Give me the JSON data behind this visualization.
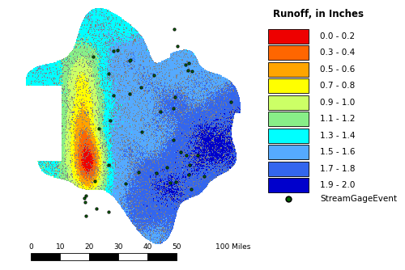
{
  "legend_title": "Runoff, in Inches",
  "legend_title_fontsize": 8.5,
  "legend_fontsize": 7.5,
  "legend_entries": [
    {
      "label": "0.0 - 0.2",
      "color": "#EE0000"
    },
    {
      "label": "0.3 - 0.4",
      "color": "#FF6600"
    },
    {
      "label": "0.5 - 0.6",
      "color": "#FFA500"
    },
    {
      "label": "0.7 - 0.8",
      "color": "#FFFF00"
    },
    {
      "label": "0.9 - 1.0",
      "color": "#CCFF66"
    },
    {
      "label": "1.1 - 1.2",
      "color": "#88EE88"
    },
    {
      "label": "1.3 - 1.4",
      "color": "#00FFFF"
    },
    {
      "label": "1.5 - 1.6",
      "color": "#55AAFF"
    },
    {
      "label": "1.7 - 1.8",
      "color": "#3366EE"
    },
    {
      "label": "1.9 - 2.0",
      "color": "#0000CC"
    }
  ],
  "stream_gage_color": "#006600",
  "stream_gage_label": "StreamGageEvent",
  "background_color": "#ffffff",
  "scalebar_ticks": [
    0,
    10,
    20,
    30,
    40,
    50
  ],
  "scalebar_end_label": "100 Miles",
  "fig_width": 5.0,
  "fig_height": 3.34,
  "dpi": 100,
  "gray_border_color": "#888888",
  "map_noise_seed": 42
}
